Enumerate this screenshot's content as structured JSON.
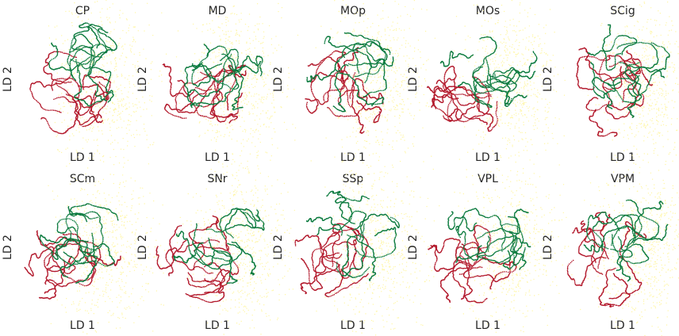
{
  "figure": {
    "colors": {
      "red": "#b2182b",
      "green": "#0b7a3e",
      "yellow": "#fff6a6"
    }
  },
  "chart_data": [
    {
      "type": "scatter",
      "title": "CP",
      "xlabel": "LD 1",
      "ylabel": "LD 2",
      "grid": false,
      "axes_visible": false
    },
    {
      "type": "scatter",
      "title": "MD",
      "xlabel": "LD 1",
      "ylabel": "LD 2",
      "grid": false,
      "axes_visible": false
    },
    {
      "type": "scatter",
      "title": "MOp",
      "xlabel": "LD 1",
      "ylabel": "LD 2",
      "grid": false,
      "axes_visible": false
    },
    {
      "type": "scatter",
      "title": "MOs",
      "xlabel": "LD 1",
      "ylabel": "LD 2",
      "grid": false,
      "axes_visible": false
    },
    {
      "type": "scatter",
      "title": "SCig",
      "xlabel": "LD 1",
      "ylabel": "LD 2",
      "grid": false,
      "axes_visible": false
    },
    {
      "type": "scatter",
      "title": "SCm",
      "xlabel": "LD 1",
      "ylabel": "LD 2",
      "grid": false,
      "axes_visible": false
    },
    {
      "type": "scatter",
      "title": "SNr",
      "xlabel": "LD 1",
      "ylabel": "LD 2",
      "grid": false,
      "axes_visible": false
    },
    {
      "type": "scatter",
      "title": "SSp",
      "xlabel": "LD 1",
      "ylabel": "LD 2",
      "grid": false,
      "axes_visible": false
    },
    {
      "type": "scatter",
      "title": "VPL",
      "xlabel": "LD 1",
      "ylabel": "LD 2",
      "grid": false,
      "axes_visible": false
    },
    {
      "type": "scatter",
      "title": "VPM",
      "xlabel": "LD 1",
      "ylabel": "LD 2",
      "grid": false,
      "axes_visible": false
    }
  ]
}
